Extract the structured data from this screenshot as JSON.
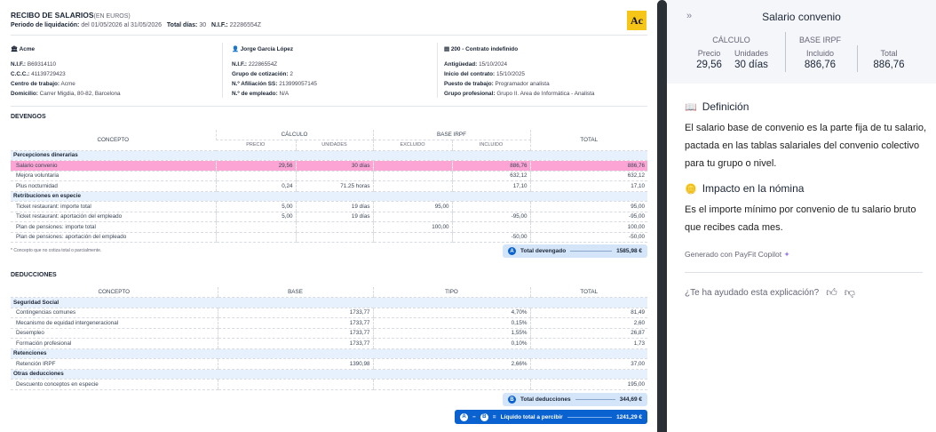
{
  "document": {
    "title": "RECIBO DE SALARIOS",
    "title_suffix": "(EN EUROS)",
    "period_label": "Periodo de liquidación:",
    "period_value": "del 01/05/2026 al 31/05/2026",
    "days_label": "Total días:",
    "days_value": "30",
    "nif_label": "N.I.F.:",
    "nif_value": "22286554Z",
    "logo_text": "Ac"
  },
  "company": {
    "name": "Acme",
    "fields": [
      {
        "label": "N.I.F.:",
        "value": "B69314110"
      },
      {
        "label": "C.C.C.:",
        "value": "41139729423"
      },
      {
        "label": "Centro de trabajo:",
        "value": "Acme"
      },
      {
        "label": "Domicilio:",
        "value": "Carrer Migdia, 80-82, Barcelona"
      }
    ]
  },
  "employee": {
    "name": "Jorge García López",
    "fields": [
      {
        "label": "N.I.F.:",
        "value": "22286554Z"
      },
      {
        "label": "Grupo de cotización:",
        "value": "2"
      },
      {
        "label": "N.º Afiliación SS:",
        "value": "213999057145"
      },
      {
        "label": "N.º de empleado:",
        "value": "N/A"
      }
    ]
  },
  "contract": {
    "name": "200 - Contrato indefinido",
    "fields": [
      {
        "label": "Antigüedad:",
        "value": "15/10/2024"
      },
      {
        "label": "Inicio del contrato:",
        "value": "15/10/2025"
      },
      {
        "label": "Puesto de trabajo:",
        "value": "Programador analista"
      },
      {
        "label": "Grupo profesional:",
        "value": "Grupo II. Area de Informática - Analista"
      }
    ]
  },
  "devengos": {
    "title": "DEVENGOS",
    "headers": {
      "concepto": "CONCEPTO",
      "calculo": "CÁLCULO",
      "precio": "PRECIO",
      "unidades": "UNIDADES",
      "base_irpf": "BASE IRPF",
      "excluido": "EXCLUIDO",
      "incluido": "INCLUIDO",
      "total": "TOTAL"
    },
    "groups": [
      {
        "label": "Percepciones dinerarias",
        "rows": [
          {
            "concepto": "Salario convenio",
            "precio": "29,56",
            "unidades": "30 días",
            "excluido": "",
            "incluido": "886,76",
            "total": "886,76",
            "highlighted": true
          },
          {
            "concepto": "Mejora voluntaria",
            "precio": "",
            "unidades": "",
            "excluido": "",
            "incluido": "632,12",
            "total": "632,12"
          },
          {
            "concepto": "Plus nocturnidad",
            "precio": "0,24",
            "unidades": "71.25 horas",
            "excluido": "",
            "incluido": "17,10",
            "total": "17,10"
          }
        ]
      },
      {
        "label": "Retribuciones en especie",
        "rows": [
          {
            "concepto": "Ticket restaurant: importe total",
            "precio": "5,00",
            "unidades": "19 días",
            "excluido": "95,00",
            "incluido": "",
            "total": "95,00"
          },
          {
            "concepto": "Ticket restaurant: aportación del empleado",
            "precio": "5,00",
            "unidades": "19 días",
            "excluido": "",
            "incluido": "-95,00",
            "total": "-95,00"
          },
          {
            "concepto": "Plan de pensiones: importe total",
            "precio": "",
            "unidades": "",
            "excluido": "100,00",
            "incluido": "",
            "total": "100,00"
          },
          {
            "concepto": "Plan de pensiones: aportación del empleado",
            "precio": "",
            "unidades": "",
            "excluido": "",
            "incluido": "-50,00",
            "total": "-50,00"
          }
        ]
      }
    ],
    "note": "* Concepto que no cotiza total o parcialmente.",
    "total_badge": "A",
    "total_label": "Total devengado",
    "total_value": "1585,98 €"
  },
  "deducciones": {
    "title": "DEDUCCIONES",
    "headers": {
      "concepto": "CONCEPTO",
      "base": "BASE",
      "tipo": "TIPO",
      "total": "TOTAL"
    },
    "groups": [
      {
        "label": "Seguridad Social",
        "rows": [
          {
            "concepto": "Contingencias comunes",
            "base": "1733,77",
            "tipo": "4,70%",
            "total": "81,49"
          },
          {
            "concepto": "Mecanismo de equidad intergeneracional",
            "base": "1733,77",
            "tipo": "0,15%",
            "total": "2,60"
          },
          {
            "concepto": "Desempleo",
            "base": "1733,77",
            "tipo": "1,55%",
            "total": "26,87"
          },
          {
            "concepto": "Formación profesional",
            "base": "1733,77",
            "tipo": "0,10%",
            "total": "1,73"
          }
        ]
      },
      {
        "label": "Retenciones",
        "rows": [
          {
            "concepto": "Retención IRPF",
            "base": "1390,98",
            "tipo": "2,66%",
            "total": "37,00"
          }
        ]
      },
      {
        "label": "Otras deducciones",
        "rows": [
          {
            "concepto": "Descuento conceptos en especie",
            "base": "",
            "tipo": "",
            "total": "195,00"
          }
        ]
      }
    ],
    "total_badge": "B",
    "total_label": "Total deducciones",
    "total_value": "344,69 €"
  },
  "liquido": {
    "badge_a": "A",
    "minus": "−",
    "badge_b": "B",
    "equals": "=",
    "label": "Líquido total a percibir",
    "value": "1241,29 €"
  },
  "panel": {
    "title": "Salario convenio",
    "collapse_icon": "double-chevron-right",
    "calculo_label": "CÁLCULO",
    "base_irpf_label": "BASE IRPF",
    "precio_label": "Precio",
    "precio_value": "29,56",
    "unidades_label": "Unidades",
    "unidades_value": "30 días",
    "incluido_label": "Incluido",
    "incluido_value": "886,76",
    "total_label": "Total",
    "total_value": "886,76",
    "definition_title": "Definición",
    "definition_text": "El salario base de convenio es la parte fija de tu salario, pactada en las tablas salariales del convenio colectivo para tu grupo o nivel.",
    "impact_title": "Impacto en la nómina",
    "impact_text": "Es el importe mínimo por convenio de tu salario bruto que recibes cada mes.",
    "generated": "Generado con PayFit Copilot",
    "feedback_question": "¿Te ha ayudado esta explicación?"
  },
  "colors": {
    "highlight": "#fca4d4",
    "group_bg": "#e6f1fd",
    "accent": "#0a62d0",
    "logo": "#f5c518",
    "sparkle": "#9b7de8"
  }
}
